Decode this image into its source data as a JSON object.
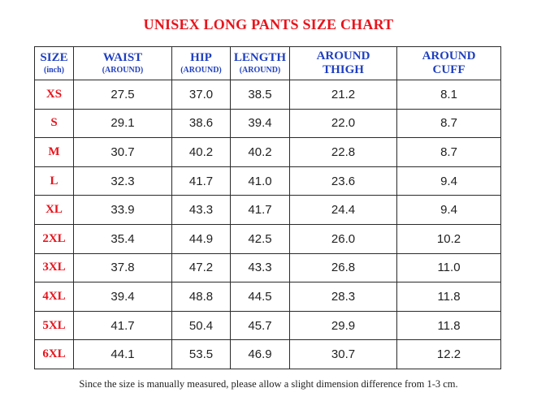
{
  "title": "UNISEX LONG PANTS SIZE CHART",
  "headers": [
    {
      "main": "SIZE",
      "sub": "(inch)"
    },
    {
      "main": "WAIST",
      "sub": "(AROUND)"
    },
    {
      "main": "HIP",
      "sub": "(AROUND)"
    },
    {
      "main": "LENGTH",
      "sub": "(AROUND)"
    },
    {
      "main": "AROUND THIGH",
      "sub": ""
    },
    {
      "main": "AROUND CUFF",
      "sub": ""
    }
  ],
  "rows": [
    {
      "size": "XS",
      "waist": "27.5",
      "hip": "37.0",
      "length": "38.5",
      "thigh": "21.2",
      "cuff": "8.1"
    },
    {
      "size": "S",
      "waist": "29.1",
      "hip": "38.6",
      "length": "39.4",
      "thigh": "22.0",
      "cuff": "8.7"
    },
    {
      "size": "M",
      "waist": "30.7",
      "hip": "40.2",
      "length": "40.2",
      "thigh": "22.8",
      "cuff": "8.7"
    },
    {
      "size": "L",
      "waist": "32.3",
      "hip": "41.7",
      "length": "41.0",
      "thigh": "23.6",
      "cuff": "9.4"
    },
    {
      "size": "XL",
      "waist": "33.9",
      "hip": "43.3",
      "length": "41.7",
      "thigh": "24.4",
      "cuff": "9.4"
    },
    {
      "size": "2XL",
      "waist": "35.4",
      "hip": "44.9",
      "length": "42.5",
      "thigh": "26.0",
      "cuff": "10.2"
    },
    {
      "size": "3XL",
      "waist": "37.8",
      "hip": "47.2",
      "length": "43.3",
      "thigh": "26.8",
      "cuff": "11.0"
    },
    {
      "size": "4XL",
      "waist": "39.4",
      "hip": "48.8",
      "length": "44.5",
      "thigh": "28.3",
      "cuff": "11.8"
    },
    {
      "size": "5XL",
      "waist": "41.7",
      "hip": "50.4",
      "length": "45.7",
      "thigh": "29.9",
      "cuff": "11.8"
    },
    {
      "size": "6XL",
      "waist": "44.1",
      "hip": "53.5",
      "length": "46.9",
      "thigh": "30.7",
      "cuff": "12.2"
    }
  ],
  "note": "Since the size is manually measured, please allow a slight dimension difference from 1-3 cm.",
  "colors": {
    "title": "#e8141c",
    "header": "#1f3fbf",
    "size_label": "#e8141c",
    "value": "#222222",
    "border": "#2a2a2a"
  }
}
